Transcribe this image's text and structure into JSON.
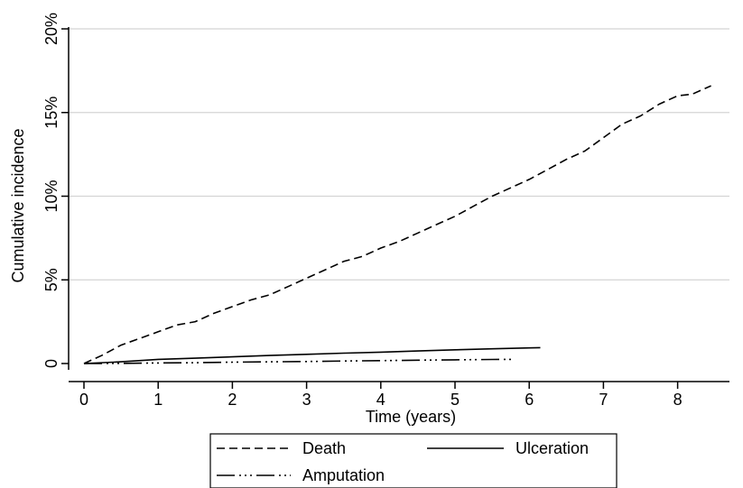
{
  "chart_data": {
    "type": "line",
    "title": "",
    "xlabel": "Time (years)",
    "ylabel": "Cumulative incidence",
    "xlim": [
      0,
      8.5
    ],
    "ylim": [
      0,
      20
    ],
    "x_ticks": [
      0,
      1,
      2,
      3,
      4,
      5,
      6,
      7,
      8
    ],
    "x_tick_labels": [
      "0",
      "1",
      "2",
      "3",
      "4",
      "5",
      "6",
      "7",
      "8"
    ],
    "y_ticks": [
      0,
      5,
      10,
      15,
      20
    ],
    "y_tick_labels": [
      "0",
      "5%",
      "10%",
      "15%",
      "20%"
    ],
    "grid": "horizontal",
    "legend_position": "bottom",
    "series": [
      {
        "name": "Death",
        "line_style": "dashed",
        "color": "#000000",
        "x": [
          0,
          0.25,
          0.5,
          0.75,
          1.0,
          1.25,
          1.5,
          1.75,
          2.0,
          2.25,
          2.5,
          2.75,
          3.0,
          3.25,
          3.5,
          3.75,
          4.0,
          4.25,
          4.5,
          4.75,
          5.0,
          5.25,
          5.5,
          5.75,
          6.0,
          6.25,
          6.5,
          6.75,
          7.0,
          7.25,
          7.5,
          7.75,
          8.0,
          8.2,
          8.45
        ],
        "y": [
          0,
          0.5,
          1.1,
          1.5,
          1.9,
          2.3,
          2.5,
          3.0,
          3.4,
          3.8,
          4.1,
          4.6,
          5.1,
          5.6,
          6.1,
          6.4,
          6.9,
          7.3,
          7.8,
          8.3,
          8.8,
          9.4,
          10.0,
          10.5,
          11.0,
          11.6,
          12.2,
          12.7,
          13.5,
          14.3,
          14.8,
          15.5,
          16.0,
          16.1,
          16.6
        ]
      },
      {
        "name": "Ulceration",
        "line_style": "solid",
        "color": "#000000",
        "x": [
          0,
          0.5,
          1.0,
          1.5,
          2.0,
          2.5,
          3.0,
          3.5,
          4.0,
          4.5,
          5.0,
          5.5,
          6.0,
          6.15
        ],
        "y": [
          0,
          0.1,
          0.25,
          0.32,
          0.4,
          0.48,
          0.55,
          0.62,
          0.68,
          0.75,
          0.82,
          0.88,
          0.93,
          0.95
        ]
      },
      {
        "name": "Amputation",
        "line_style": "dashdotdot",
        "color": "#000000",
        "x": [
          0,
          0.5,
          1.0,
          1.5,
          2.0,
          2.5,
          3.0,
          3.5,
          4.0,
          4.5,
          5.0,
          5.5,
          5.8
        ],
        "y": [
          0,
          0.01,
          0.03,
          0.05,
          0.08,
          0.1,
          0.12,
          0.15,
          0.17,
          0.2,
          0.22,
          0.24,
          0.25
        ]
      }
    ],
    "legend": {
      "entries": [
        "Death",
        "Ulceration",
        "Amputation"
      ]
    }
  }
}
